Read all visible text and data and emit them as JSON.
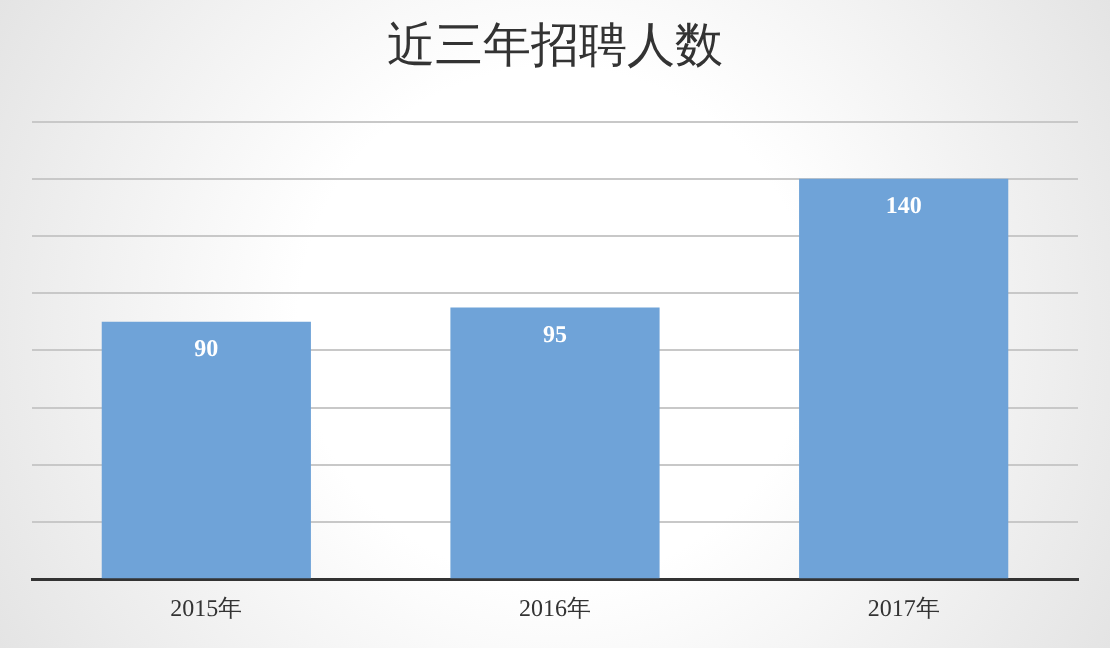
{
  "chart_data": {
    "type": "bar",
    "title": "近三年招聘人数",
    "categories": [
      "2015年",
      "2016年",
      "2017年"
    ],
    "values": [
      90,
      95,
      140
    ],
    "color": "#6fa3d8",
    "data_labels": true,
    "ylim": [
      0,
      160
    ],
    "yticks": [
      {
        "value": 0,
        "label": null
      },
      {
        "value": 20,
        "label": null
      },
      {
        "value": 40,
        "label": null
      },
      {
        "value": 60,
        "label": null
      },
      {
        "value": 80,
        "label": null
      },
      {
        "value": 100,
        "label": null
      },
      {
        "value": 120,
        "label": null
      },
      {
        "value": 140,
        "label": null
      },
      {
        "value": 160,
        "label": null
      }
    ],
    "grid": "y",
    "tick_labels": "x",
    "legend": false
  }
}
